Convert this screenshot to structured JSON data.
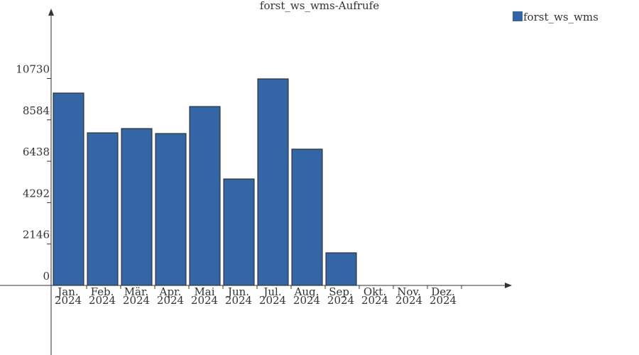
{
  "chart_data": {
    "type": "bar",
    "title": "forst_ws_wms-Aufrufe",
    "categories": [
      [
        "Jan.",
        "2024"
      ],
      [
        "Feb.",
        "2024"
      ],
      [
        "Mär.",
        "2024"
      ],
      [
        "Apr.",
        "2024"
      ],
      [
        "Mai",
        "2024"
      ],
      [
        "Jun.",
        "2024"
      ],
      [
        "Jul.",
        "2024"
      ],
      [
        "Aug.",
        "2024"
      ],
      [
        "Sep.",
        "2024"
      ],
      [
        "Okt.",
        "2024"
      ],
      [
        "Nov.",
        "2024"
      ],
      [
        "Dez.",
        "2024"
      ]
    ],
    "series": [
      {
        "name": "forst_ws_wms",
        "color": "#3465a4",
        "values": [
          9975,
          7914,
          8135,
          7877,
          9276,
          5521,
          10711,
          7067,
          1693,
          null,
          null,
          null
        ]
      }
    ],
    "ylim": [
      0,
      14245
    ],
    "yticks": [
      0,
      2146,
      4292,
      6438,
      8584,
      10730
    ]
  }
}
